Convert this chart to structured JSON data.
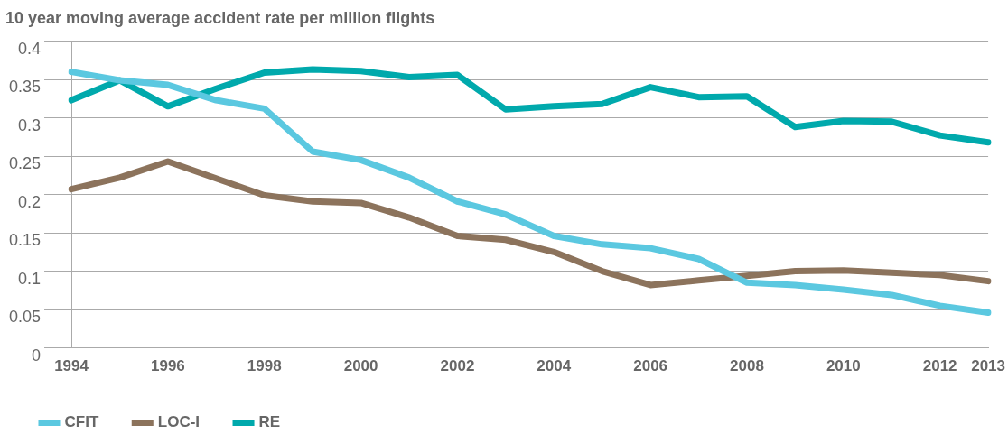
{
  "chart_data": {
    "type": "line",
    "title": "10 year moving average accident rate per million flights",
    "categories": [
      "1994",
      null,
      "1996",
      null,
      "1998",
      null,
      "2000",
      null,
      "2002",
      null,
      "2004",
      null,
      "2006",
      null,
      "2008",
      null,
      "2010",
      null,
      "2012",
      "2013"
    ],
    "series": [
      {
        "name": "CFIT",
        "color": "#5bc8e0",
        "values": [
          0.36,
          0.349,
          0.343,
          0.323,
          0.312,
          0.256,
          0.245,
          0.222,
          0.191,
          0.174,
          0.146,
          0.135,
          0.13,
          0.116,
          0.085,
          0.082,
          0.076,
          0.069,
          0.055,
          0.046
        ]
      },
      {
        "name": "LOC-I",
        "color": "#8c735c",
        "values": [
          0.207,
          0.222,
          0.243,
          0.221,
          0.199,
          0.191,
          0.189,
          0.17,
          0.146,
          0.141,
          0.125,
          0.1,
          0.082,
          0.088,
          0.094,
          0.1,
          0.101,
          0.098,
          0.095,
          0.087
        ]
      },
      {
        "name": "RE",
        "color": "#00a9ac",
        "values": [
          0.323,
          0.349,
          0.315,
          0.338,
          0.359,
          0.363,
          0.361,
          0.353,
          0.356,
          0.311,
          0.315,
          0.318,
          0.34,
          0.327,
          0.328,
          0.288,
          0.296,
          0.295,
          0.277,
          0.268
        ]
      }
    ],
    "ylim": [
      0,
      0.4
    ],
    "yticks": [
      0,
      0.05,
      0.1,
      0.15,
      0.2,
      0.25,
      0.3,
      0.35,
      0.4
    ],
    "grid": "y",
    "legend": "bottom",
    "marker": "none",
    "line_style": "solid"
  }
}
